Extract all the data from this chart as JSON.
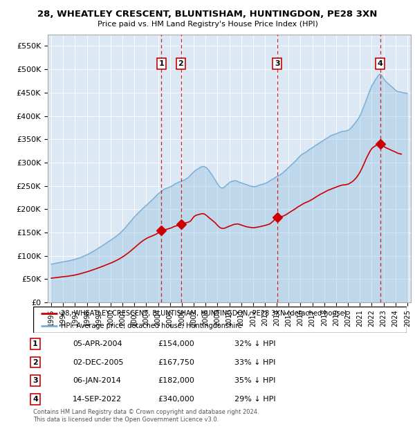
{
  "title": "28, WHEATLEY CRESCENT, BLUNTISHAM, HUNTINGDON, PE28 3XN",
  "subtitle": "Price paid vs. HM Land Registry's House Price Index (HPI)",
  "ylim": [
    0,
    575000
  ],
  "yticks": [
    0,
    50000,
    100000,
    150000,
    200000,
    250000,
    300000,
    350000,
    400000,
    450000,
    500000,
    550000
  ],
  "ytick_labels": [
    "£0",
    "£50K",
    "£100K",
    "£150K",
    "£200K",
    "£250K",
    "£300K",
    "£350K",
    "£400K",
    "£450K",
    "£500K",
    "£550K"
  ],
  "sale_dates": [
    2004.27,
    2005.92,
    2014.03,
    2022.71
  ],
  "sale_prices": [
    154000,
    167750,
    182000,
    340000
  ],
  "sale_labels": [
    "1",
    "2",
    "3",
    "4"
  ],
  "hpi_color": "#7aaed6",
  "sale_color": "#cc0000",
  "vline_color": "#cc0000",
  "background_color": "#dce9f5",
  "legend_entries": [
    "28, WHEATLEY CRESCENT, BLUNTISHAM, HUNTINGDON, PE28 3XN (detached house)",
    "HPI: Average price, detached house, Huntingdonshire"
  ],
  "table_data": [
    [
      "1",
      "05-APR-2004",
      "£154,000",
      "32% ↓ HPI"
    ],
    [
      "2",
      "02-DEC-2005",
      "£167,750",
      "33% ↓ HPI"
    ],
    [
      "3",
      "06-JAN-2014",
      "£182,000",
      "35% ↓ HPI"
    ],
    [
      "4",
      "14-SEP-2022",
      "£340,000",
      "29% ↓ HPI"
    ]
  ],
  "footer": "Contains HM Land Registry data © Crown copyright and database right 2024.\nThis data is licensed under the Open Government Licence v3.0."
}
